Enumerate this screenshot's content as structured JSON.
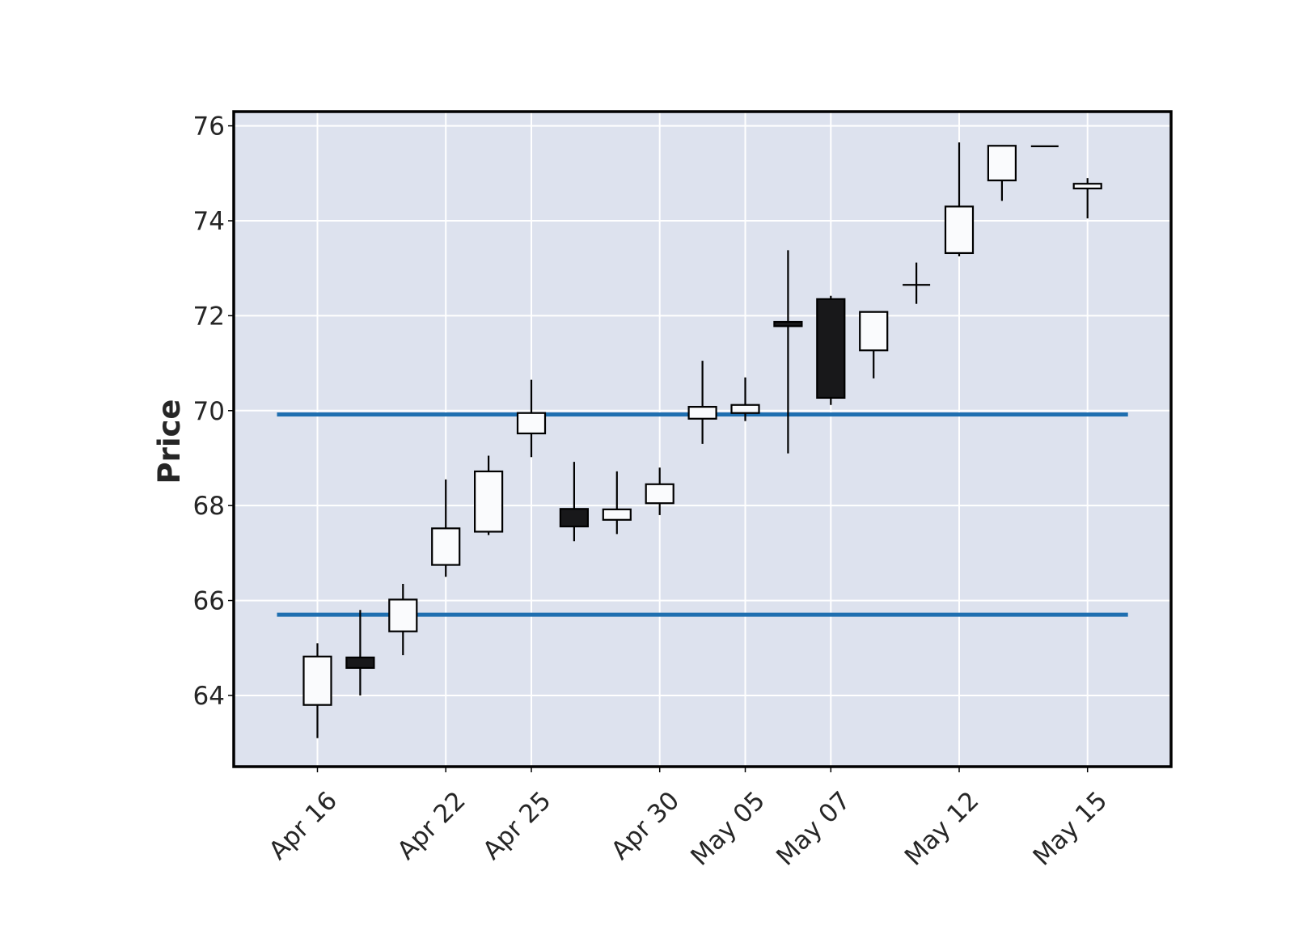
{
  "chart_data": {
    "type": "candlestick",
    "ylabel": "Price",
    "ylim": [
      62.5,
      76.3
    ],
    "yticks": [
      64,
      66,
      68,
      70,
      72,
      74,
      76
    ],
    "xticks": [
      "Apr 16",
      "Apr 22",
      "Apr 25",
      "Apr 30",
      "May 05",
      "May 07",
      "May 12",
      "May 15"
    ],
    "grid": true,
    "colors": {
      "background": "#dde2ee",
      "up_body": "#fafbfd",
      "down_body": "#18181a",
      "wick": "#000000",
      "hline": "#1f6fb0"
    },
    "hlines": [
      69.92,
      65.7
    ],
    "candles": [
      {
        "label": "Apr 16",
        "open": 63.8,
        "high": 65.1,
        "low": 63.1,
        "close": 64.82
      },
      {
        "open": 64.8,
        "high": 65.8,
        "low": 64.0,
        "close": 64.58
      },
      {
        "open": 65.35,
        "high": 66.35,
        "low": 64.85,
        "close": 66.02
      },
      {
        "label": "Apr 22",
        "open": 66.75,
        "high": 68.55,
        "low": 66.5,
        "close": 67.52
      },
      {
        "open": 67.45,
        "high": 69.05,
        "low": 67.38,
        "close": 68.72
      },
      {
        "label": "Apr 25",
        "open": 69.52,
        "high": 70.65,
        "low": 69.02,
        "close": 69.95
      },
      {
        "open": 67.93,
        "high": 68.92,
        "low": 67.25,
        "close": 67.56
      },
      {
        "open": 67.7,
        "high": 68.72,
        "low": 67.4,
        "close": 67.92
      },
      {
        "label": "Apr 30",
        "open": 68.05,
        "high": 68.8,
        "low": 67.8,
        "close": 68.45
      },
      {
        "open": 69.83,
        "high": 71.05,
        "low": 69.3,
        "close": 70.08
      },
      {
        "label": "May 05",
        "open": 69.95,
        "high": 70.7,
        "low": 69.78,
        "close": 70.12
      },
      {
        "open": 71.87,
        "high": 73.38,
        "low": 69.1,
        "close": 71.78
      },
      {
        "label": "May 07",
        "open": 72.35,
        "high": 72.42,
        "low": 70.12,
        "close": 70.27
      },
      {
        "open": 71.27,
        "high": 72.08,
        "low": 70.68,
        "close": 72.08
      },
      {
        "open": 72.65,
        "high": 73.12,
        "low": 72.25,
        "close": 72.65
      },
      {
        "label": "May 12",
        "open": 73.32,
        "high": 75.65,
        "low": 73.25,
        "close": 74.3
      },
      {
        "open": 74.85,
        "high": 75.58,
        "low": 74.42,
        "close": 75.58
      },
      {
        "open": 75.57,
        "high": 75.57,
        "low": 75.57,
        "close": 75.57
      },
      {
        "label": "May 15",
        "open": 74.68,
        "high": 74.9,
        "low": 74.05,
        "close": 74.78
      }
    ]
  }
}
